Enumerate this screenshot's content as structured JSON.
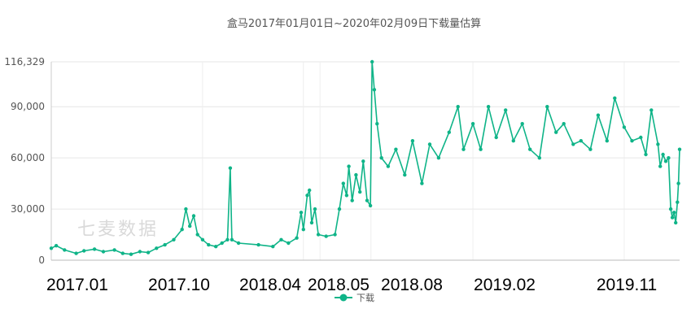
{
  "chart_data": {
    "type": "line",
    "title": "盒马2017年01月01日~2020年02月09日下载量估算",
    "watermark": "七麦数据",
    "ylim": [
      0,
      116329
    ],
    "yticks": [
      0,
      30000,
      60000,
      90000,
      116329
    ],
    "ytick_labels": [
      "0",
      "30,000",
      "60,000",
      "90,000",
      "116,329"
    ],
    "x_labels": [
      "2017.01",
      "2017.10",
      "2018.04",
      "2018.05",
      "2018.08",
      "2019.02",
      "2019.11"
    ],
    "x_label_dates": [
      "2017-01-01",
      "2017-10-01",
      "2018-04-01",
      "2018-05-01",
      "2018-08-01",
      "2019-02-01",
      "2019-11-01"
    ],
    "x_range": [
      "2017-01-01",
      "2020-02-09"
    ],
    "grid": true,
    "legend": "bottom",
    "color": "#0fb488",
    "series": [
      {
        "name": "下载",
        "points": [
          [
            "2017-01-01",
            7000
          ],
          [
            "2017-01-10",
            8500
          ],
          [
            "2017-01-25",
            6000
          ],
          [
            "2017-02-15",
            4000
          ],
          [
            "2017-03-01",
            5500
          ],
          [
            "2017-03-20",
            6500
          ],
          [
            "2017-04-05",
            5000
          ],
          [
            "2017-04-25",
            6000
          ],
          [
            "2017-05-10",
            4000
          ],
          [
            "2017-05-25",
            3500
          ],
          [
            "2017-06-10",
            5000
          ],
          [
            "2017-06-25",
            4500
          ],
          [
            "2017-07-10",
            7000
          ],
          [
            "2017-07-25",
            9000
          ],
          [
            "2017-08-10",
            12000
          ],
          [
            "2017-08-25",
            18000
          ],
          [
            "2017-09-01",
            30000
          ],
          [
            "2017-09-08",
            20000
          ],
          [
            "2017-09-15",
            26000
          ],
          [
            "2017-09-22",
            15000
          ],
          [
            "2017-10-01",
            12000
          ],
          [
            "2017-10-12",
            9000
          ],
          [
            "2017-10-25",
            8000
          ],
          [
            "2017-11-05",
            10000
          ],
          [
            "2017-11-15",
            12000
          ],
          [
            "2017-11-20",
            54000
          ],
          [
            "2017-11-23",
            12000
          ],
          [
            "2017-12-05",
            10000
          ],
          [
            "2018-01-10",
            9000
          ],
          [
            "2018-02-05",
            8000
          ],
          [
            "2018-02-20",
            12000
          ],
          [
            "2018-03-05",
            10000
          ],
          [
            "2018-03-20",
            13000
          ],
          [
            "2018-03-28",
            28000
          ],
          [
            "2018-04-01",
            18000
          ],
          [
            "2018-04-08",
            38000
          ],
          [
            "2018-04-12",
            41000
          ],
          [
            "2018-04-16",
            22000
          ],
          [
            "2018-04-22",
            30000
          ],
          [
            "2018-04-28",
            15000
          ],
          [
            "2018-05-12",
            14000
          ],
          [
            "2018-05-28",
            15000
          ],
          [
            "2018-06-05",
            30000
          ],
          [
            "2018-06-12",
            45000
          ],
          [
            "2018-06-18",
            38000
          ],
          [
            "2018-06-22",
            55000
          ],
          [
            "2018-06-28",
            35000
          ],
          [
            "2018-07-05",
            50000
          ],
          [
            "2018-07-12",
            40000
          ],
          [
            "2018-07-18",
            58000
          ],
          [
            "2018-07-25",
            35000
          ],
          [
            "2018-07-31",
            32000
          ],
          [
            "2018-08-03",
            116329
          ],
          [
            "2018-08-07",
            100000
          ],
          [
            "2018-08-12",
            80000
          ],
          [
            "2018-08-20",
            60000
          ],
          [
            "2018-09-01",
            55000
          ],
          [
            "2018-09-15",
            65000
          ],
          [
            "2018-10-01",
            50000
          ],
          [
            "2018-10-15",
            70000
          ],
          [
            "2018-11-01",
            45000
          ],
          [
            "2018-11-15",
            68000
          ],
          [
            "2018-12-01",
            60000
          ],
          [
            "2018-12-20",
            75000
          ],
          [
            "2019-01-05",
            90000
          ],
          [
            "2019-01-15",
            65000
          ],
          [
            "2019-02-01",
            80000
          ],
          [
            "2019-02-15",
            65000
          ],
          [
            "2019-03-01",
            90000
          ],
          [
            "2019-03-15",
            72000
          ],
          [
            "2019-04-01",
            88000
          ],
          [
            "2019-04-15",
            70000
          ],
          [
            "2019-05-01",
            80000
          ],
          [
            "2019-05-15",
            65000
          ],
          [
            "2019-06-01",
            60000
          ],
          [
            "2019-06-15",
            90000
          ],
          [
            "2019-07-01",
            75000
          ],
          [
            "2019-07-15",
            80000
          ],
          [
            "2019-08-01",
            68000
          ],
          [
            "2019-08-15",
            70000
          ],
          [
            "2019-09-01",
            65000
          ],
          [
            "2019-09-15",
            85000
          ],
          [
            "2019-10-01",
            70000
          ],
          [
            "2019-10-15",
            95000
          ],
          [
            "2019-11-01",
            78000
          ],
          [
            "2019-11-15",
            70000
          ],
          [
            "2019-12-01",
            72000
          ],
          [
            "2019-12-10",
            62000
          ],
          [
            "2019-12-20",
            88000
          ],
          [
            "2020-01-01",
            68000
          ],
          [
            "2020-01-05",
            55000
          ],
          [
            "2020-01-10",
            62000
          ],
          [
            "2020-01-15",
            58000
          ],
          [
            "2020-01-20",
            60000
          ],
          [
            "2020-01-24",
            30000
          ],
          [
            "2020-01-27",
            25000
          ],
          [
            "2020-01-30",
            28000
          ],
          [
            "2020-02-02",
            22000
          ],
          [
            "2020-02-05",
            34000
          ],
          [
            "2020-02-07",
            45000
          ],
          [
            "2020-02-09",
            65000
          ]
        ]
      }
    ]
  }
}
